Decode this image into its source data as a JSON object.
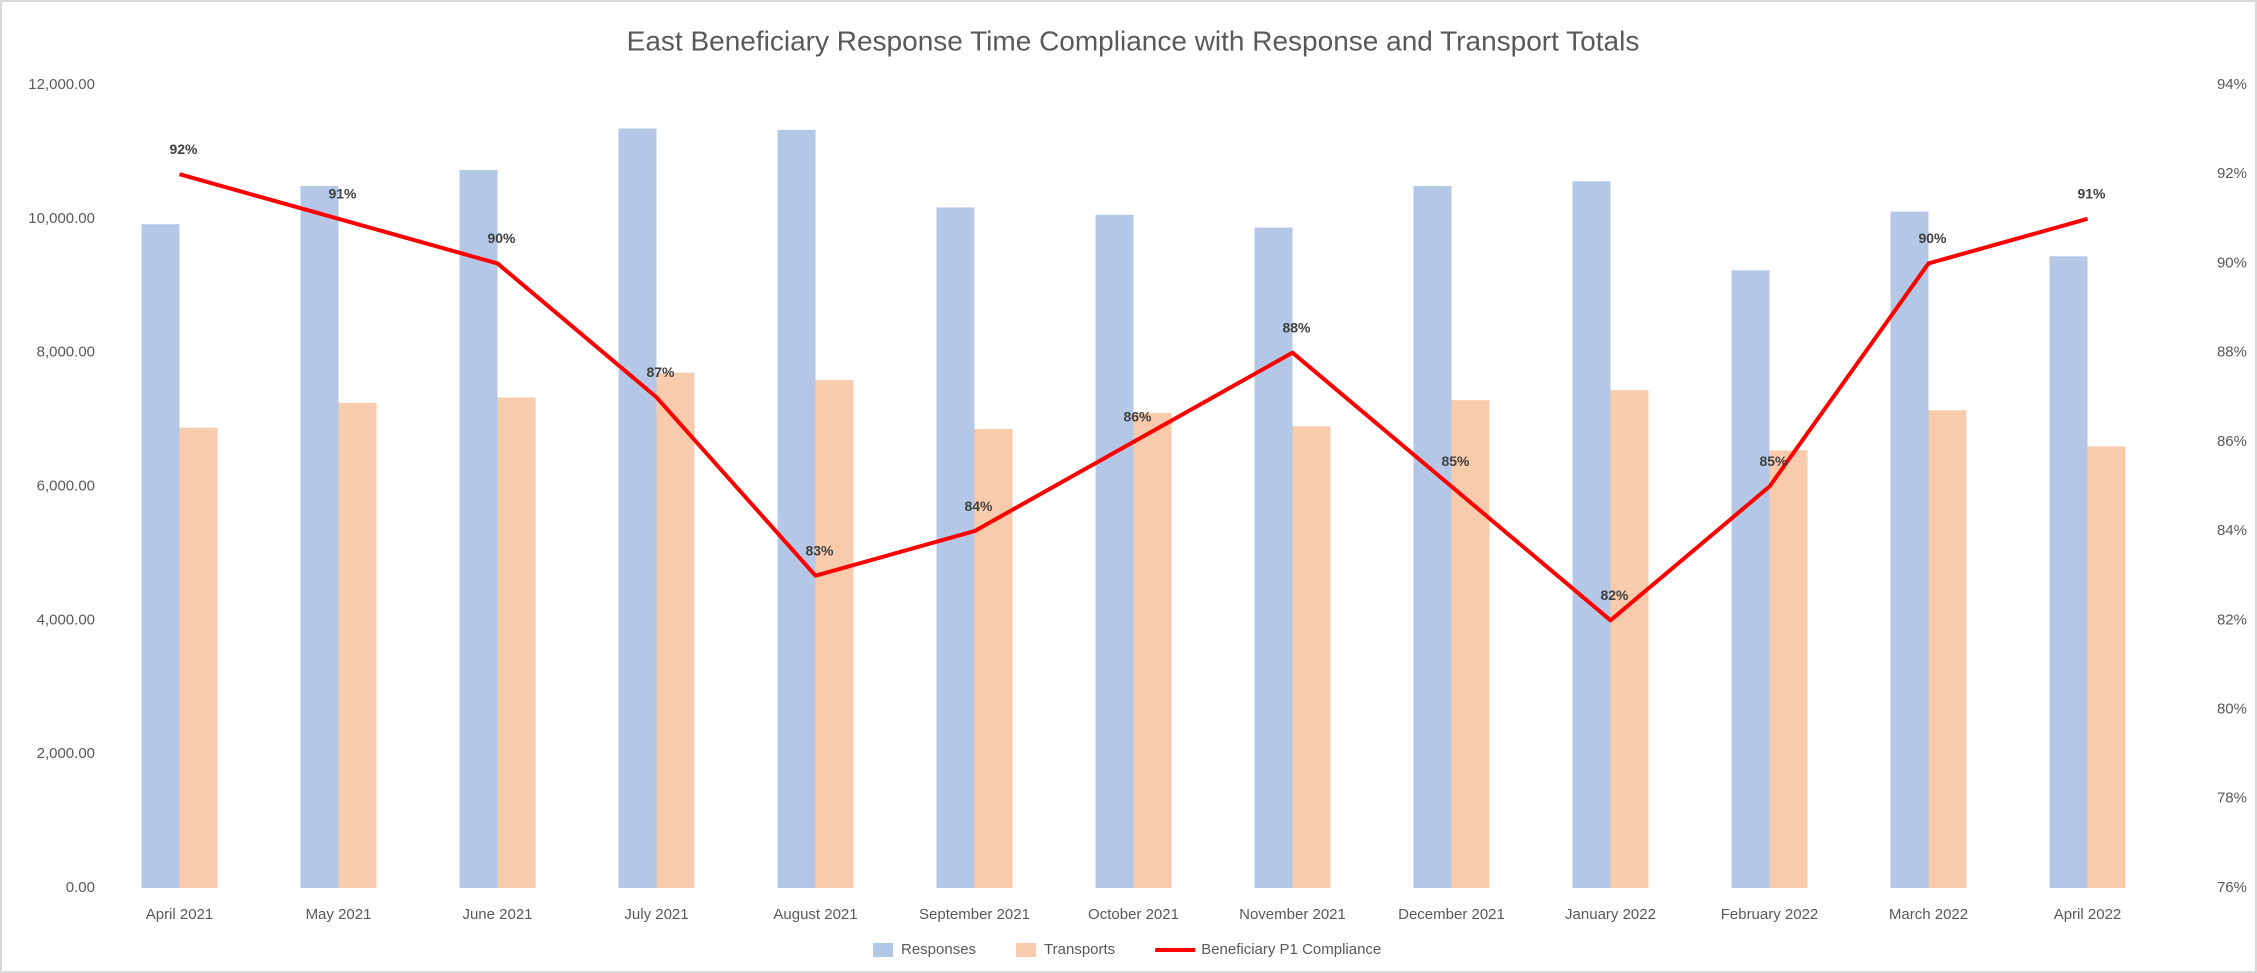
{
  "chart_data": {
    "type": "bar",
    "title": "East Beneficiary Response Time Compliance with Response and Transport Totals",
    "categories": [
      "April 2021",
      "May 2021",
      "June 2021",
      "July 2021",
      "August 2021",
      "September 2021",
      "October 2021",
      "November 2021",
      "December 2021",
      "January 2022",
      "February 2022",
      "March 2022",
      "April 2022"
    ],
    "series": [
      {
        "name": "Responses",
        "color": "#b4c7e7",
        "type": "bar",
        "values": [
          9920,
          10490,
          10730,
          11350,
          11330,
          10170,
          10060,
          9870,
          10490,
          10560,
          9230,
          10110,
          9440
        ]
      },
      {
        "name": "Transports",
        "color": "#f8cbad",
        "type": "bar",
        "values": [
          6880,
          7250,
          7330,
          7700,
          7590,
          6860,
          7100,
          6900,
          7290,
          7440,
          6540,
          7140,
          6600
        ]
      },
      {
        "name": "Beneficiary P1 Compliance",
        "color": "#ff0000",
        "type": "line",
        "axis": "y2",
        "values": [
          92,
          91,
          90,
          87,
          83,
          84,
          86,
          88,
          85,
          82,
          85,
          90,
          91
        ],
        "value_labels": [
          "92%",
          "91%",
          "90%",
          "87%",
          "83%",
          "84%",
          "86%",
          "88%",
          "85%",
          "82%",
          "85%",
          "90%",
          "91%"
        ]
      }
    ],
    "ylim": [
      0,
      12000
    ],
    "yticks": [
      {
        "value": 0,
        "label": "0.00"
      },
      {
        "value": 2000,
        "label": "2,000.00"
      },
      {
        "value": 4000,
        "label": "4,000.00"
      },
      {
        "value": 6000,
        "label": "6,000.00"
      },
      {
        "value": 8000,
        "label": "8,000.00"
      },
      {
        "value": 10000,
        "label": "10,000.00"
      },
      {
        "value": 12000,
        "label": "12,000.00"
      }
    ],
    "y2lim": [
      76,
      94
    ],
    "y2ticks": [
      {
        "value": 76,
        "label": "76%"
      },
      {
        "value": 78,
        "label": "78%"
      },
      {
        "value": 80,
        "label": "80%"
      },
      {
        "value": 82,
        "label": "82%"
      },
      {
        "value": 84,
        "label": "84%"
      },
      {
        "value": 86,
        "label": "86%"
      },
      {
        "value": 88,
        "label": "88%"
      },
      {
        "value": 90,
        "label": "90%"
      },
      {
        "value": 92,
        "label": "92%"
      },
      {
        "value": 94,
        "label": "94%"
      }
    ],
    "grid": false,
    "legend": "bottom"
  }
}
